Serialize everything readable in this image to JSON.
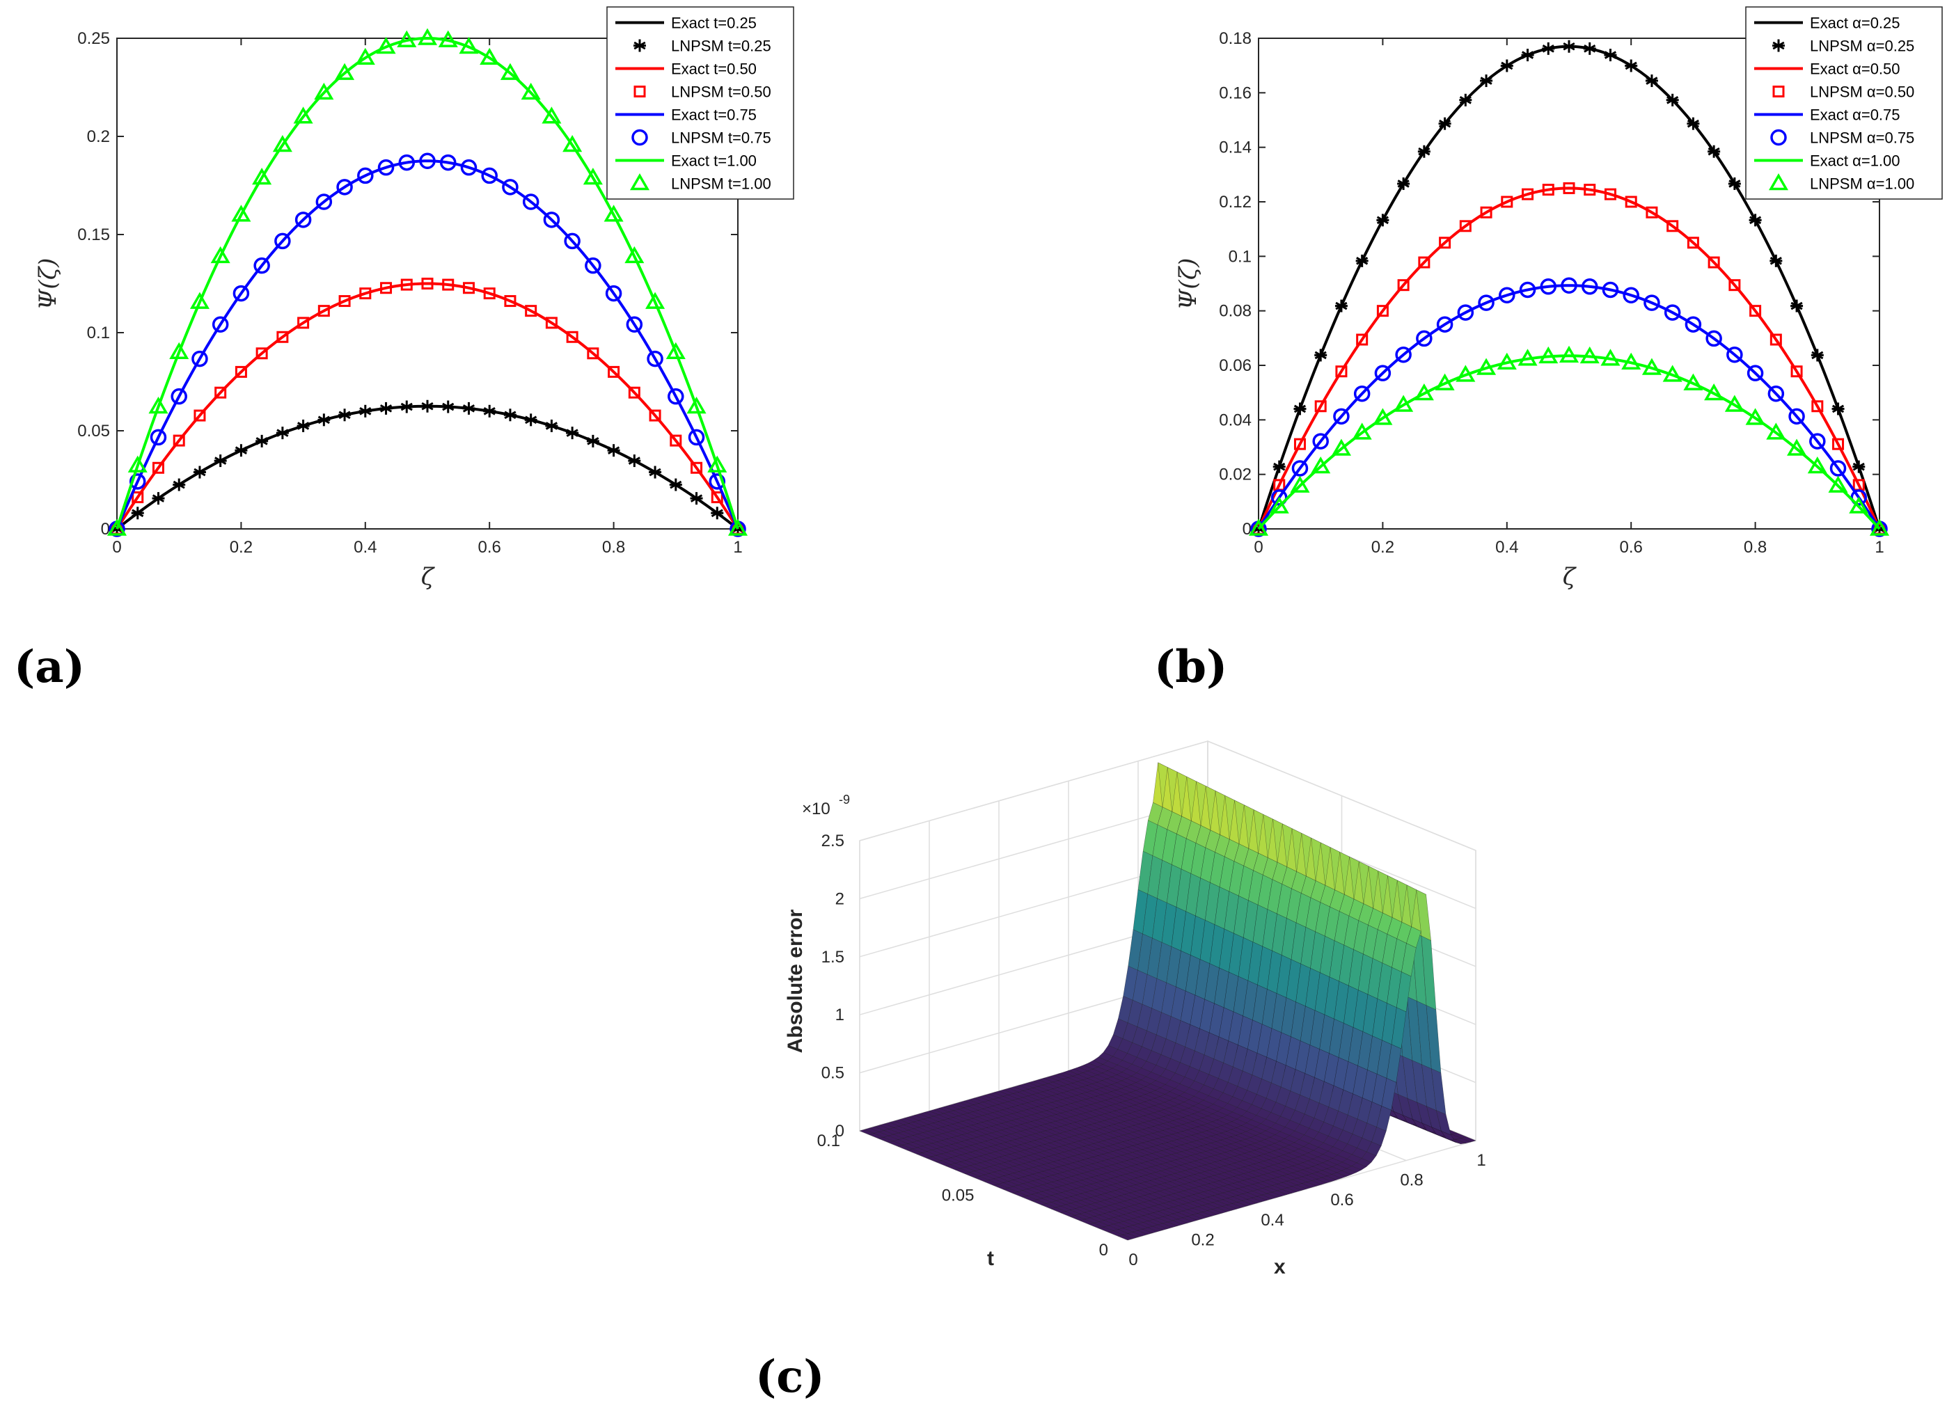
{
  "chart_data": [
    {
      "type": "line",
      "panel_label": "(a)",
      "xlabel": "ζ",
      "ylabel": "Ψ(ζ)",
      "xlim": [
        0,
        1
      ],
      "ylim": [
        0,
        0.25
      ],
      "xticks": [
        "0",
        "0.2",
        "0.4",
        "0.6",
        "0.8",
        "1"
      ],
      "yticks": [
        "0",
        "0.05",
        "0.1",
        "0.15",
        "0.2",
        "0.25"
      ],
      "legend_position": "top-right",
      "curve_formula": "peak * 4 * x * (1 - x)",
      "marker_x_step": 0.0333,
      "series": [
        {
          "name": "Exact t=0.25",
          "marker_name": "LNPSM t=0.25",
          "color": "#000000",
          "marker": "asterisk",
          "peak": 0.0625
        },
        {
          "name": "Exact t=0.50",
          "marker_name": "LNPSM t=0.50",
          "color": "#ff0000",
          "marker": "square",
          "peak": 0.125
        },
        {
          "name": "Exact t=0.75",
          "marker_name": "LNPSM t=0.75",
          "color": "#0000ff",
          "marker": "circle",
          "peak": 0.1875
        },
        {
          "name": "Exact t=1.00",
          "marker_name": "LNPSM t=1.00",
          "color": "#00ff00",
          "marker": "triangle",
          "peak": 0.25
        }
      ]
    },
    {
      "type": "line",
      "panel_label": "(b)",
      "xlabel": "ζ",
      "ylabel": "Ψ(ζ)",
      "xlim": [
        0,
        1
      ],
      "ylim": [
        0,
        0.18
      ],
      "xticks": [
        "0",
        "0.2",
        "0.4",
        "0.6",
        "0.8",
        "1"
      ],
      "yticks": [
        "0",
        "0.02",
        "0.04",
        "0.06",
        "0.08",
        "0.1",
        "0.12",
        "0.14",
        "0.16",
        "0.18"
      ],
      "legend_position": "top-right",
      "curve_formula": "peak * 4 * x * (1 - x)",
      "marker_x_step": 0.0333,
      "series": [
        {
          "name": "Exact α=0.25",
          "marker_name": "LNPSM α=0.25",
          "color": "#000000",
          "marker": "asterisk",
          "peak": 0.177
        },
        {
          "name": "Exact α=0.50",
          "marker_name": "LNPSM α=0.50",
          "color": "#ff0000",
          "marker": "square",
          "peak": 0.125
        },
        {
          "name": "Exact α=0.75",
          "marker_name": "LNPSM α=0.75",
          "color": "#0000ff",
          "marker": "circle",
          "peak": 0.0893
        },
        {
          "name": "Exact α=1.00",
          "marker_name": "LNPSM α=1.00",
          "color": "#00ff00",
          "marker": "triangle",
          "peak": 0.0635
        }
      ]
    },
    {
      "type": "surface",
      "panel_label": "(c)",
      "zlabel": "Absolute error",
      "xlabel": "x",
      "ylabel": "t",
      "scale_exponent_base": "×10",
      "scale_exponent": "-9",
      "xlim": [
        0,
        1
      ],
      "ylim": [
        0,
        0.1
      ],
      "zlim": [
        0,
        2.5
      ],
      "xticks": [
        "0",
        "0.2",
        "0.4",
        "0.6",
        "0.8",
        "1"
      ],
      "yticks": [
        "0",
        "0.05",
        "0.1"
      ],
      "zticks": [
        "0",
        "0.5",
        "1",
        "1.5",
        "2",
        "2.5"
      ],
      "surface": {
        "description_formula": "A(t) * exp(-((x-0.85)/0.06)^2) * (x < 0.92 ? 1 : decay)",
        "peak_at_t_max": 2.5,
        "peak_at_t_0": 2.3,
        "peak_x": 0.85
      },
      "colormap": [
        "#3e1a5b",
        "#3b528b",
        "#21908d",
        "#5dc863",
        "#fde725"
      ]
    }
  ]
}
